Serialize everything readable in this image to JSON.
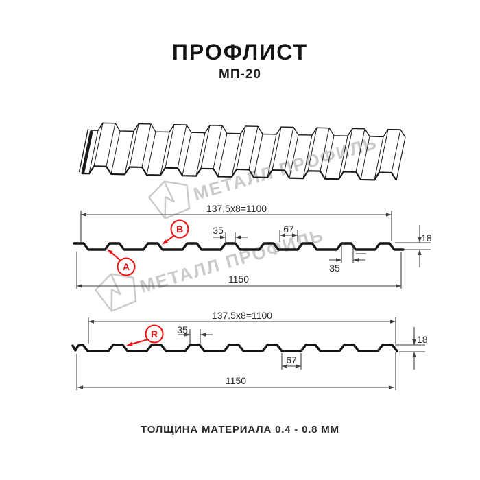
{
  "page": {
    "title": "ПРОФЛИСТ",
    "subtitle": "МП-20",
    "footer": "ТОЛЩИНА МАТЕРИАЛА 0.4 - 0.8 ММ"
  },
  "watermark": {
    "text": "МЕТАЛЛ ПРОФИЛЬ",
    "color": "#cacaca",
    "logo_icon": "metall-profil-logo"
  },
  "colors": {
    "line": "#161616",
    "dimension": "#3f3f3f",
    "accent_red": "#f01414",
    "background": "#ffffff"
  },
  "section_a": {
    "label_a": "A",
    "label_b": "B",
    "dims": {
      "module_width": "137,5x8=1100",
      "rib_top": "35",
      "valley": "67",
      "height": "18",
      "rib_bottom": "35",
      "overall_width": "1150"
    }
  },
  "section_r": {
    "label_r": "R",
    "dims": {
      "module_width": "137.5x8=1100",
      "rib_top": "35",
      "height": "18",
      "valley": "67",
      "overall_width": "1150"
    }
  }
}
